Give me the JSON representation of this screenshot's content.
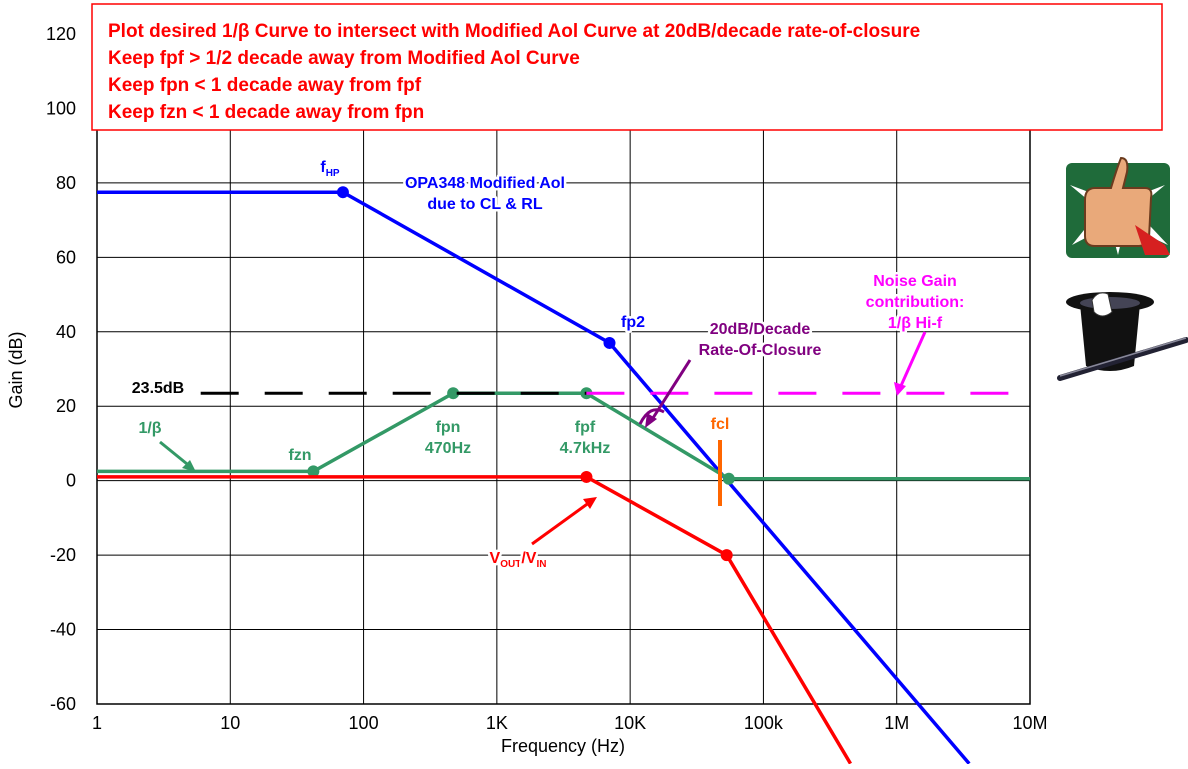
{
  "chart_data": {
    "type": "line",
    "notes": [
      "Plot desired 1/β Curve to intersect with Modified Aol Curve at 20dB/decade rate-of-closure",
      "Keep fpf > 1/2 decade away from Modified Aol Curve",
      "Keep fpn < 1 decade away from fpf",
      "Keep fzn < 1 decade away from fpn"
    ],
    "xlabel": "Frequency (Hz)",
    "ylabel": "Gain (dB)",
    "log_x": true,
    "grid": true,
    "xlim": [
      1,
      10000000
    ],
    "xticks": [
      1,
      10,
      100,
      {
        "value": 1000,
        "label": "1K"
      },
      {
        "value": 10000,
        "label": "10K"
      },
      {
        "value": 100000,
        "label": "100k"
      },
      {
        "value": 1000000,
        "label": "1M"
      },
      {
        "value": 10000000,
        "label": "10M"
      }
    ],
    "ylim": [
      -60,
      120
    ],
    "yticks": [
      -60,
      -40,
      -20,
      0,
      20,
      40,
      60,
      80,
      100,
      120
    ],
    "series": [
      {
        "color": "#0000ff",
        "x": [
          1,
          70,
          7000,
          3500000
        ],
        "values": [
          77.5,
          77.5,
          37,
          -76
        ]
      },
      {
        "color": "#339966",
        "x": [
          1,
          42,
          470,
          4700,
          55000,
          10000000
        ],
        "values": [
          2.5,
          2.5,
          23.5,
          23.5,
          0.5,
          0.5
        ]
      },
      {
        "color": "#ff0000",
        "x": [
          1,
          4700,
          53000,
          450000
        ],
        "values": [
          1,
          1,
          -20,
          -76
        ]
      },
      {
        "color": "#000000",
        "dashed": true,
        "x": [
          6,
          4700
        ],
        "values": [
          23.5,
          23.5
        ]
      },
      {
        "color": "#ff00ff",
        "dashed": true,
        "x": [
          4700,
          10000000
        ],
        "values": [
          23.5,
          23.5
        ]
      }
    ],
    "annotations": [
      {
        "lines": [
          "23.5dB"
        ],
        "color": "#000000"
      },
      {
        "parts": [
          "f",
          "HP"
        ],
        "color": "#0000ff"
      },
      {
        "lines": [
          "OPA348 Modified Aol",
          "due to CL & RL"
        ],
        "color": "#0000ff"
      },
      {
        "lines": [
          "fp2"
        ],
        "color": "#0000ff"
      },
      {
        "lines": [
          "20dB/Decade",
          "Rate-Of-Closure"
        ],
        "color": "#800080"
      },
      {
        "lines": [
          "Noise Gain",
          "contribution:",
          "1/β Hi-f"
        ],
        "color": "#ff00ff"
      },
      {
        "lines": [
          "1/β"
        ],
        "color": "#339966"
      },
      {
        "lines": [
          "fzn"
        ],
        "color": "#339966"
      },
      {
        "lines": [
          "fpn",
          "470Hz"
        ],
        "color": "#339966"
      },
      {
        "lines": [
          "fpf",
          "4.7kHz"
        ],
        "color": "#339966"
      },
      {
        "lines": [
          "fcl"
        ],
        "color": "#ff6600"
      },
      {
        "parts": [
          "V",
          "OUT",
          "/V",
          "IN"
        ],
        "color": "#ff0000"
      }
    ]
  }
}
